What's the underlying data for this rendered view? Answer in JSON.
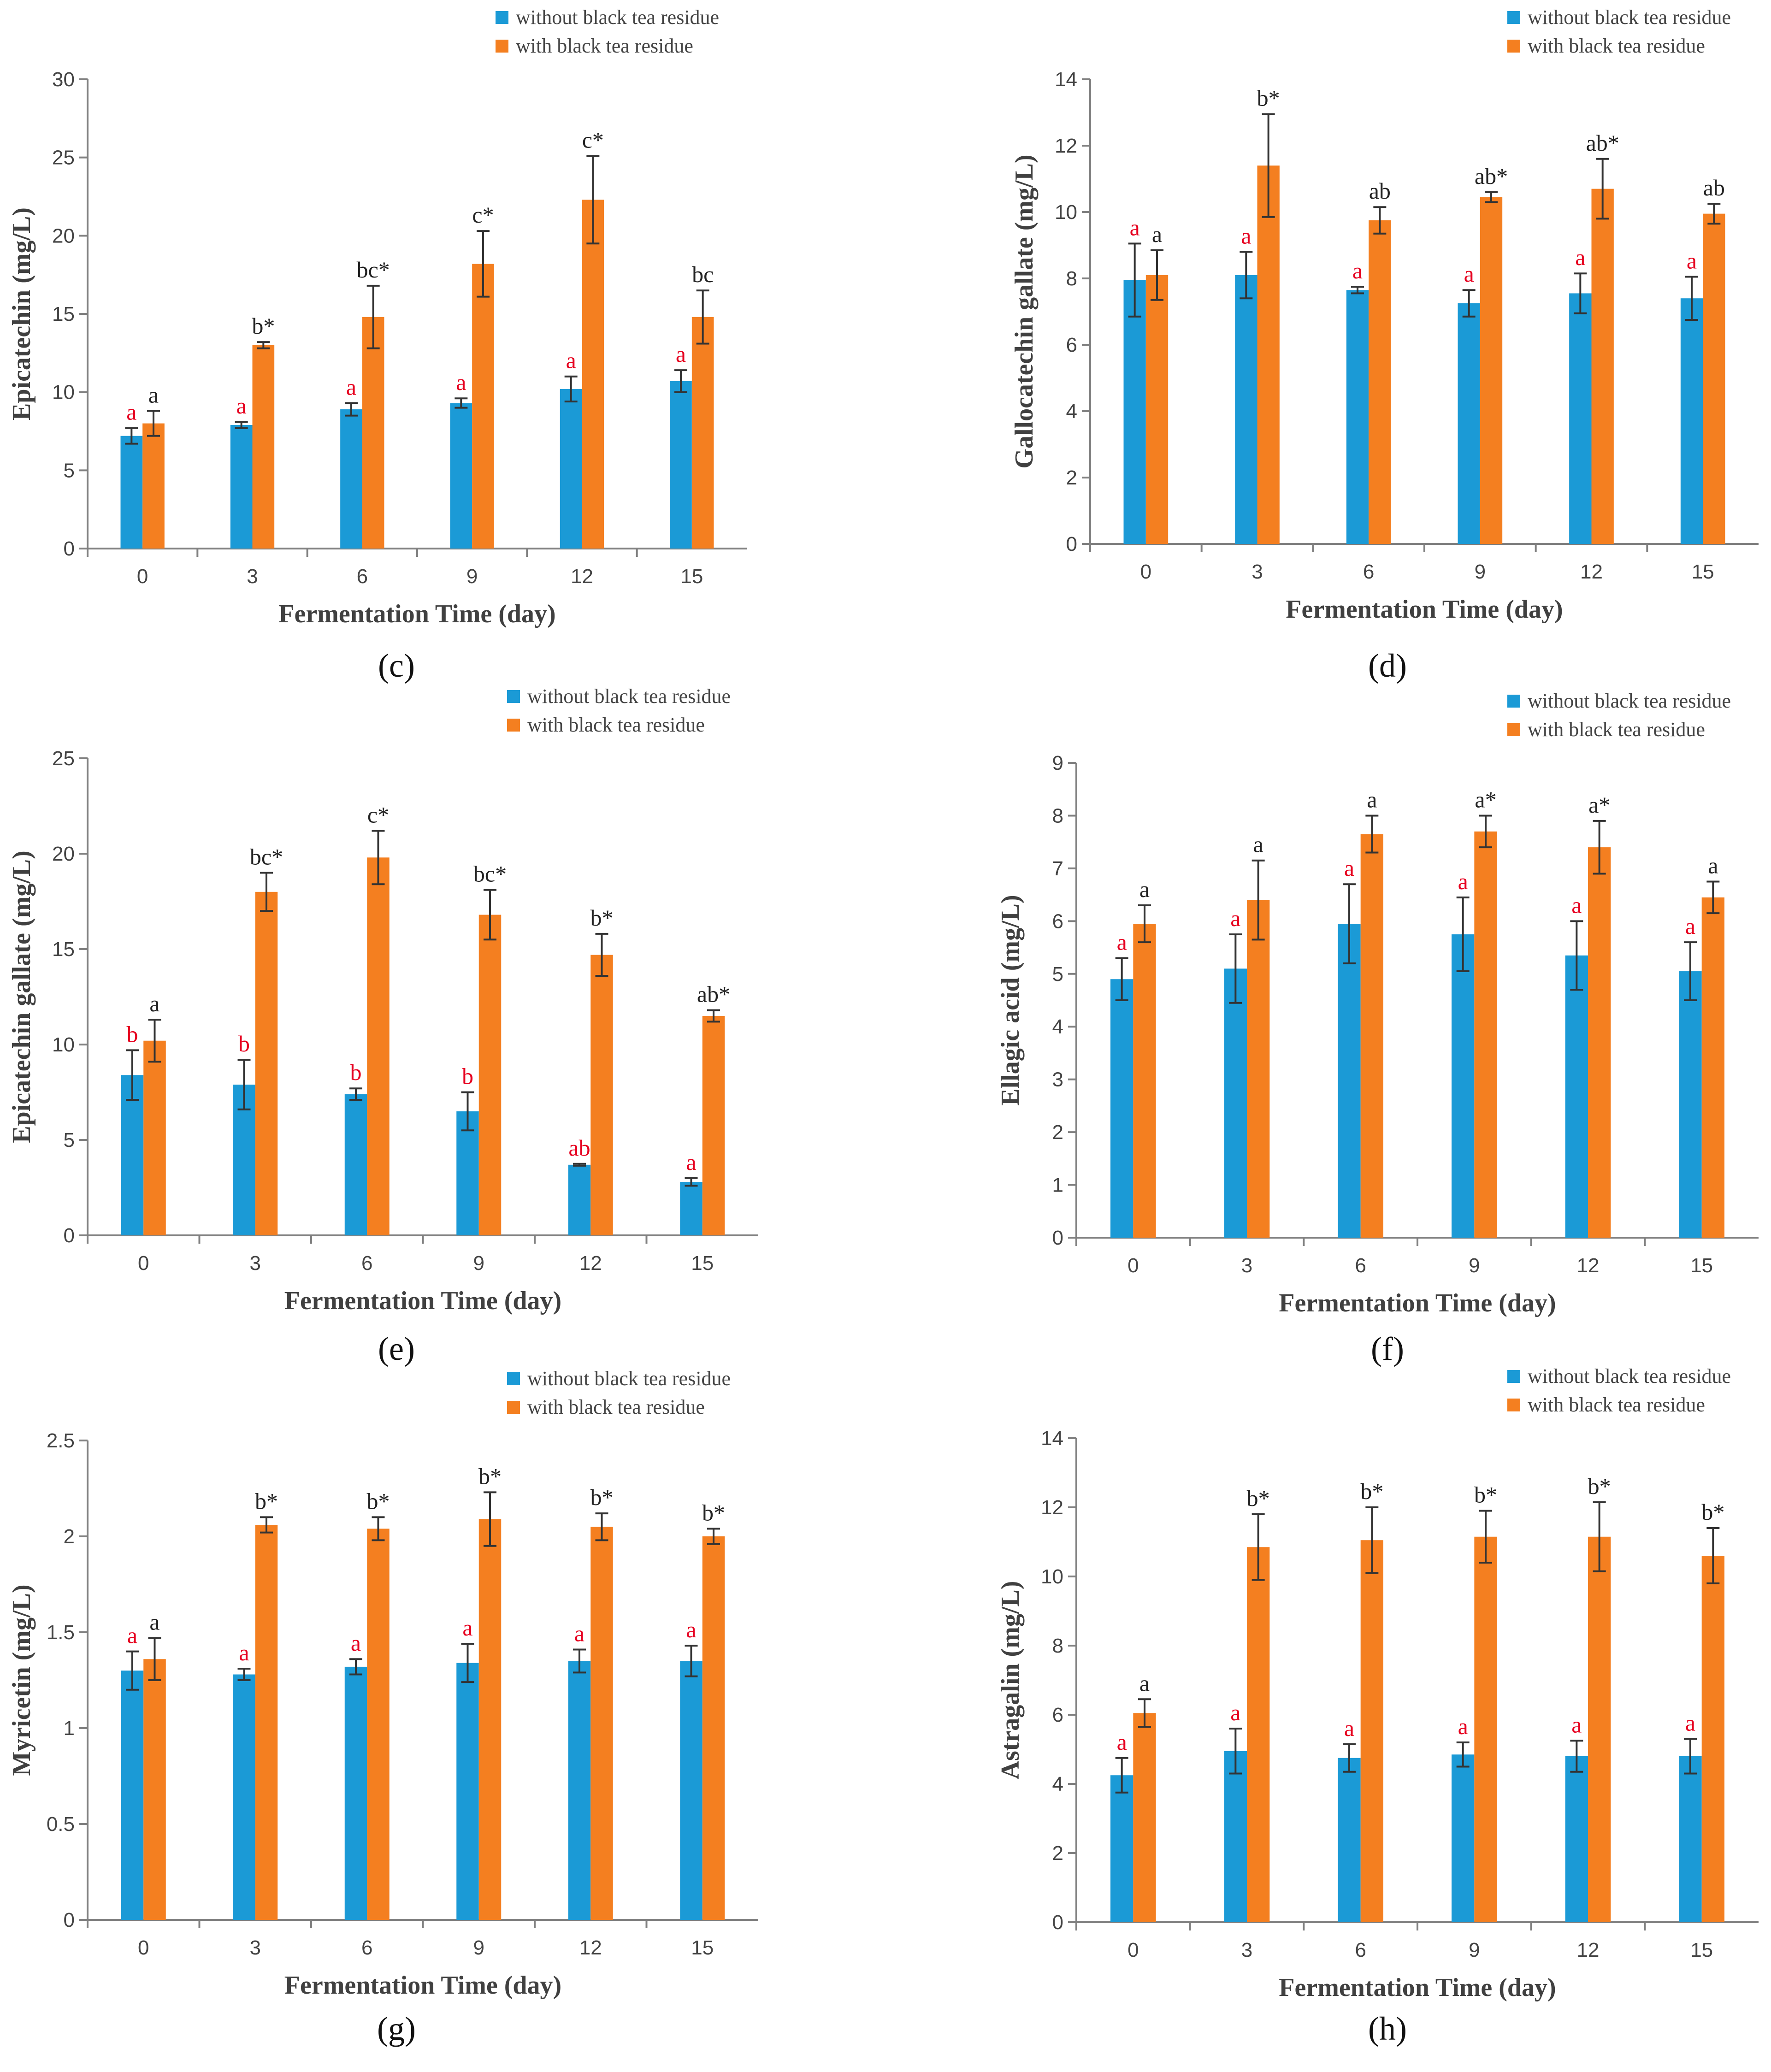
{
  "colors": {
    "without": "#1B9AD6",
    "with": "#F47F20",
    "sig_red": "#E6001F",
    "sig_dark": "#222222",
    "axis": "#808080"
  },
  "chart_data": [
    {
      "type": "bar",
      "panel": "(c)",
      "panel_letter": "c",
      "title": "",
      "xlabel": "Fermentation Time (day)",
      "ylabel": "Epicatechin (mg/L)",
      "ylim": [
        0,
        30
      ],
      "yticks": [
        0,
        5,
        10,
        15,
        20,
        25,
        30
      ],
      "categories": [
        "0",
        "3",
        "6",
        "9",
        "12",
        "15"
      ],
      "series": [
        {
          "name": "without black tea residue",
          "values": [
            7.2,
            7.9,
            8.9,
            9.3,
            10.2,
            10.7
          ],
          "errors": [
            0.5,
            0.2,
            0.4,
            0.3,
            0.8,
            0.7
          ],
          "letters": [
            "a",
            "a",
            "a",
            "a",
            "a",
            "a"
          ]
        },
        {
          "name": "with black tea  residue",
          "values": [
            8.0,
            13.0,
            14.8,
            18.2,
            22.3,
            14.8
          ],
          "errors": [
            0.8,
            0.2,
            2.0,
            2.1,
            2.8,
            1.7
          ],
          "letters": [
            "a",
            "b*",
            "bc*",
            "c*",
            "c*",
            "bc"
          ]
        }
      ]
    },
    {
      "type": "bar",
      "panel": "(d)",
      "panel_letter": "d",
      "title": "",
      "xlabel": "Fermentation Time (day)",
      "ylabel": "Gallocatechin gallate (mg/L)",
      "ylim": [
        0,
        14
      ],
      "yticks": [
        0,
        2,
        4,
        6,
        8,
        10,
        12,
        14
      ],
      "categories": [
        "0",
        "3",
        "6",
        "9",
        "12",
        "15"
      ],
      "series": [
        {
          "name": "without black tea residue",
          "values": [
            7.95,
            8.1,
            7.65,
            7.25,
            7.55,
            7.4
          ],
          "errors": [
            1.1,
            0.7,
            0.1,
            0.4,
            0.6,
            0.65
          ],
          "letters": [
            "a",
            "a",
            "a",
            "a",
            "a",
            "a"
          ]
        },
        {
          "name": "with black tea  residue",
          "values": [
            8.1,
            11.4,
            9.75,
            10.45,
            10.7,
            9.95
          ],
          "errors": [
            0.75,
            1.55,
            0.4,
            0.15,
            0.9,
            0.3
          ],
          "letters": [
            "a",
            "b*",
            "ab",
            "ab*",
            "ab*",
            "ab"
          ]
        }
      ]
    },
    {
      "type": "bar",
      "panel": "(e)",
      "panel_letter": "e",
      "title": "",
      "xlabel": "Fermentation Time (day)",
      "ylabel": "Epicatechin gallate (mg/L)",
      "ylim": [
        0,
        25
      ],
      "yticks": [
        0,
        5,
        10,
        15,
        20,
        25
      ],
      "categories": [
        "0",
        "3",
        "6",
        "9",
        "12",
        "15"
      ],
      "series": [
        {
          "name": "without black tea residue",
          "values": [
            8.4,
            7.9,
            7.4,
            6.5,
            3.7,
            2.8
          ],
          "errors": [
            1.3,
            1.3,
            0.3,
            1.0,
            0.05,
            0.2
          ],
          "letters": [
            "b",
            "b",
            "b",
            "b",
            "ab",
            "a"
          ]
        },
        {
          "name": "with black tea  residue",
          "values": [
            10.2,
            18.0,
            19.8,
            16.8,
            14.7,
            11.5
          ],
          "errors": [
            1.1,
            1.0,
            1.4,
            1.3,
            1.1,
            0.3
          ],
          "letters": [
            "a",
            "bc*",
            "c*",
            "bc*",
            "b*",
            "ab*"
          ]
        }
      ]
    },
    {
      "type": "bar",
      "panel": "(f)",
      "panel_letter": "f",
      "title": "",
      "xlabel": "Fermentation Time (day)",
      "ylabel": "Ellagic acid (mg/L)",
      "ylim": [
        0,
        9
      ],
      "yticks": [
        0,
        1,
        2,
        3,
        4,
        5,
        6,
        7,
        8,
        9
      ],
      "categories": [
        "0",
        "3",
        "6",
        "9",
        "12",
        "15"
      ],
      "series": [
        {
          "name": "without black tea residue",
          "values": [
            4.9,
            5.1,
            5.95,
            5.75,
            5.35,
            5.05
          ],
          "errors": [
            0.4,
            0.65,
            0.75,
            0.7,
            0.65,
            0.55
          ],
          "letters": [
            "a",
            "a",
            "a",
            "a",
            "a",
            "a"
          ]
        },
        {
          "name": "with black tea  residue",
          "values": [
            5.95,
            6.4,
            7.65,
            7.7,
            7.4,
            6.45
          ],
          "errors": [
            0.35,
            0.75,
            0.35,
            0.3,
            0.5,
            0.3
          ],
          "letters": [
            "a",
            "a",
            "a",
            "a*",
            "a*",
            "a"
          ]
        }
      ]
    },
    {
      "type": "bar",
      "panel": "(g)",
      "panel_letter": "g",
      "title": "",
      "xlabel": "Fermentation Time (day)",
      "ylabel": "Myricetin (mg/L)",
      "ylim": [
        0,
        2.5
      ],
      "yticks": [
        0,
        0.5,
        1,
        1.5,
        2,
        2.5
      ],
      "categories": [
        "0",
        "3",
        "6",
        "9",
        "12",
        "15"
      ],
      "series": [
        {
          "name": "without black tea residue",
          "values": [
            1.3,
            1.28,
            1.32,
            1.34,
            1.35,
            1.35
          ],
          "errors": [
            0.1,
            0.03,
            0.04,
            0.1,
            0.06,
            0.08
          ],
          "letters": [
            "a",
            "a",
            "a",
            "a",
            "a",
            "a"
          ]
        },
        {
          "name": "with black tea  residue",
          "values": [
            1.36,
            2.06,
            2.04,
            2.09,
            2.05,
            2.0
          ],
          "errors": [
            0.11,
            0.04,
            0.06,
            0.14,
            0.07,
            0.04
          ],
          "letters": [
            "a",
            "b*",
            "b*",
            "b*",
            "b*",
            "b*"
          ]
        }
      ]
    },
    {
      "type": "bar",
      "panel": "(h)",
      "panel_letter": "h",
      "title": "",
      "xlabel": "Fermentation Time (day)",
      "ylabel": "Astragalin (mg/L)",
      "ylim": [
        0,
        14
      ],
      "yticks": [
        0,
        2,
        4,
        6,
        8,
        10,
        12,
        14
      ],
      "categories": [
        "0",
        "3",
        "6",
        "9",
        "12",
        "15"
      ],
      "series": [
        {
          "name": "without black tea residue",
          "values": [
            4.25,
            4.95,
            4.75,
            4.85,
            4.8,
            4.8
          ],
          "errors": [
            0.5,
            0.65,
            0.4,
            0.35,
            0.45,
            0.5
          ],
          "letters": [
            "a",
            "a",
            "a",
            "a",
            "a",
            "a"
          ]
        },
        {
          "name": "with black tea  residue",
          "values": [
            6.05,
            10.85,
            11.05,
            11.15,
            11.15,
            10.6
          ],
          "errors": [
            0.4,
            0.95,
            0.95,
            0.75,
            1.0,
            0.8
          ],
          "letters": [
            "a",
            "b*",
            "b*",
            "b*",
            "b*",
            "b*"
          ]
        }
      ]
    }
  ]
}
